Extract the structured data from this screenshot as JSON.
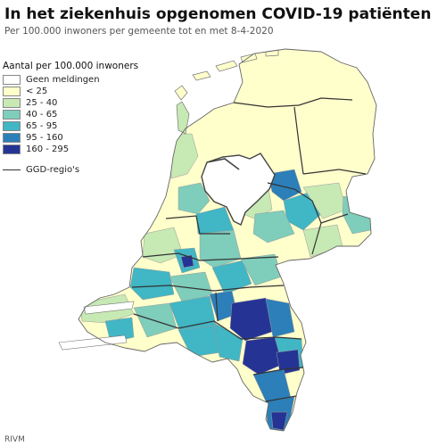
{
  "header": {
    "title": "In het ziekenhuis opgenomen COVID-19 patiënten",
    "subtitle": "Per 100.000 inwoners per gemeente tot en met 8-4-2020"
  },
  "legend": {
    "title": "Aantal per 100.000 inwoners",
    "items": [
      {
        "label": "Geen meldingen",
        "color": "#ffffff"
      },
      {
        "label": "< 25",
        "color": "#ffffcc"
      },
      {
        "label": "25 - 40",
        "color": "#c7e9b4"
      },
      {
        "label": "40 - 65",
        "color": "#7fcdbb"
      },
      {
        "label": "65 - 95",
        "color": "#41b6c4"
      },
      {
        "label": "95 - 160",
        "color": "#2c7fb8"
      },
      {
        "label": "160 - 295",
        "color": "#253494"
      }
    ],
    "ggd_label": "GGD-regio's"
  },
  "source": "RIVM"
}
